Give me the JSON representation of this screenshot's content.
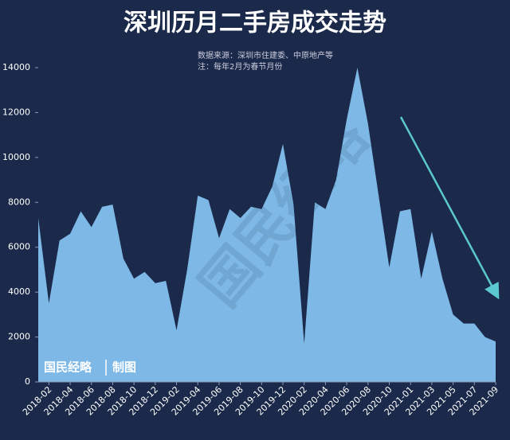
{
  "chart_data": {
    "type": "area",
    "title": "深圳历月二手房成交走势",
    "source": "数据来源：深圳市住建委、中原地产等",
    "note": "注：每年2月为春节月份",
    "watermark": "国民经略",
    "credit": "国民经略",
    "credit_suffix": "制图",
    "categories": [
      null,
      "2018-02",
      null,
      "2018-04",
      null,
      "2018-06",
      null,
      "2018-08",
      null,
      "2018-10",
      null,
      "2018-12",
      null,
      "2019-02",
      null,
      "2019-04",
      null,
      "2019-06",
      null,
      "2019-08",
      null,
      "2019-10",
      null,
      "2019-12",
      null,
      "2020-02",
      null,
      "2020-04",
      null,
      "2020-06",
      null,
      "2020-08",
      null,
      "2020-10",
      null,
      "2021-01",
      null,
      "2021-03",
      null,
      "2021-05",
      null,
      "2021-07",
      null,
      "2021-09"
    ],
    "values": [
      7300,
      3500,
      6300,
      6600,
      7600,
      6900,
      7800,
      7900,
      5500,
      4600,
      4900,
      4400,
      4500,
      2300,
      5000,
      8300,
      8100,
      6400,
      7700,
      7300,
      7800,
      7700,
      8700,
      10600,
      7900,
      1700,
      8000,
      7700,
      9000,
      11700,
      14000,
      11500,
      8300,
      5100,
      7600,
      7700,
      4600,
      6700,
      4600,
      3000,
      2600,
      2600,
      2000,
      1800
    ],
    "color": "#7db8e6",
    "ylim": [
      0,
      14000
    ],
    "yticks": [
      0,
      2000,
      4000,
      6000,
      8000,
      10000,
      12000,
      14000
    ]
  }
}
